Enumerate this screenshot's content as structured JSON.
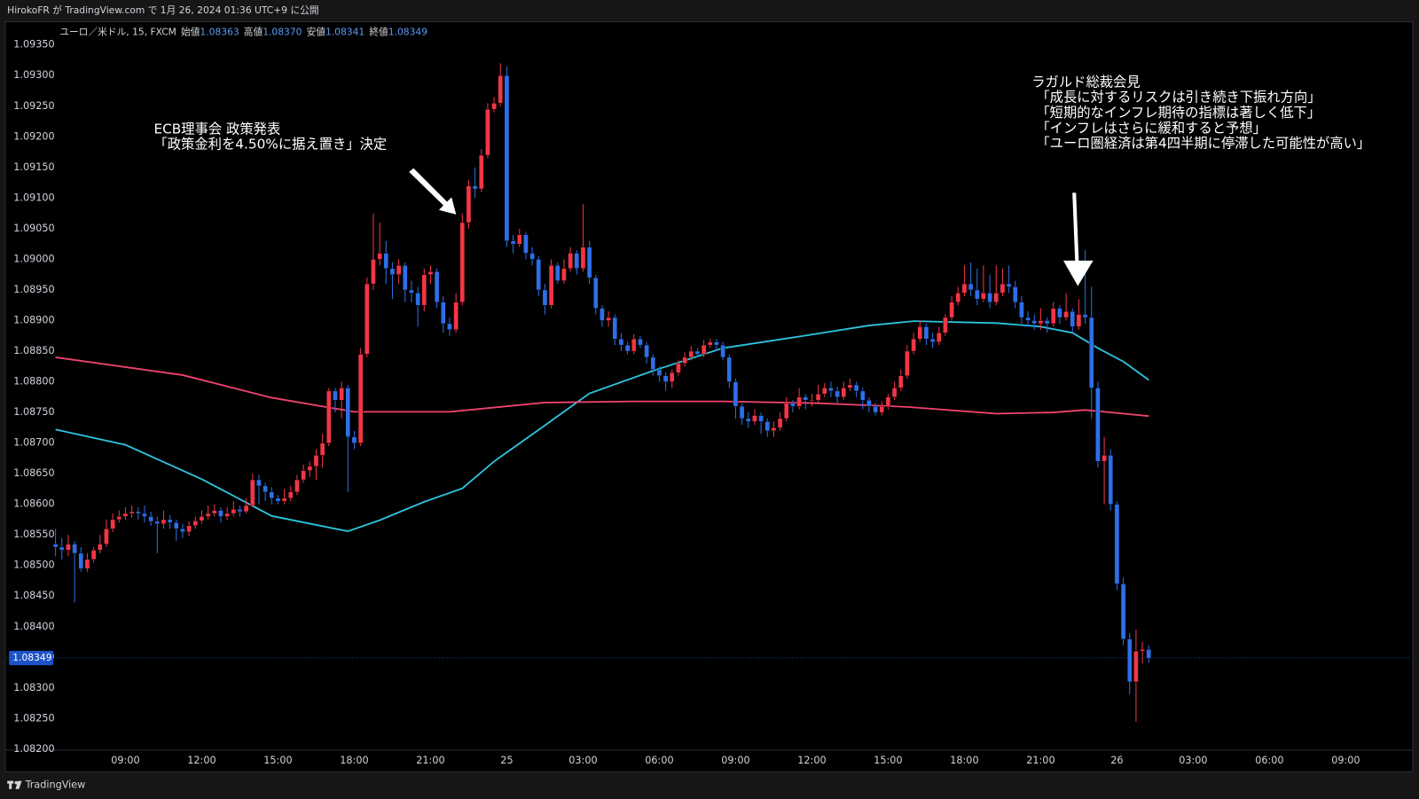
{
  "chart_data": {
    "type": "candlestick",
    "header": "HirokoFR が TradingView.com で 1月 26, 2024 01:36 UTC+9 に公開",
    "symbol": "ユーロ／米ドル, 15, FXCM",
    "ohlc_labels": [
      "始値",
      "高値",
      "安値",
      "終値"
    ],
    "last_labels": [
      "1.08363",
      "1.08370",
      "1.08341",
      "1.08349"
    ],
    "footer": "TradingView",
    "up_color": "#f23645",
    "down_color": "#2e6fe8",
    "x": [
      "06:15",
      "06:30",
      "06:45",
      "07:00",
      "07:15",
      "07:30",
      "07:45",
      "08:00",
      "08:15",
      "08:30",
      "08:45",
      "09:00",
      "09:15",
      "09:30",
      "09:45",
      "10:00",
      "10:15",
      "10:30",
      "10:45",
      "11:00",
      "11:15",
      "11:30",
      "11:45",
      "12:00",
      "12:15",
      "12:30",
      "12:45",
      "13:00",
      "13:15",
      "13:30",
      "13:45",
      "14:00",
      "14:15",
      "14:30",
      "14:45",
      "15:00",
      "15:15",
      "15:30",
      "15:45",
      "16:00",
      "16:15",
      "16:30",
      "16:45",
      "17:00",
      "17:15",
      "17:30",
      "17:45",
      "18:00",
      "18:15",
      "18:30",
      "18:45",
      "19:00",
      "19:15",
      "19:30",
      "19:45",
      "20:00",
      "20:15",
      "20:30",
      "20:45",
      "21:00",
      "21:15",
      "21:30",
      "21:45",
      "22:00",
      "22:15",
      "22:30",
      "22:45",
      "23:00",
      "23:15",
      "23:30",
      "23:45",
      "00:00",
      "00:15",
      "00:30",
      "00:45",
      "01:00",
      "01:15",
      "01:30",
      "01:45",
      "02:00",
      "02:15",
      "02:30",
      "02:45",
      "03:00",
      "03:15",
      "03:30",
      "03:45",
      "04:00",
      "04:15",
      "04:30",
      "04:45",
      "05:00",
      "05:15",
      "05:30",
      "05:45",
      "06:00",
      "06:15",
      "06:30",
      "06:45",
      "07:00",
      "07:15",
      "07:30",
      "07:45",
      "08:00",
      "08:15",
      "08:30",
      "08:45",
      "09:00",
      "09:15",
      "09:30",
      "09:45",
      "10:00",
      "10:15",
      "10:30",
      "10:45",
      "11:00",
      "11:15",
      "11:30",
      "11:45",
      "12:00",
      "12:15",
      "12:30",
      "12:45",
      "13:00",
      "13:15",
      "13:30",
      "13:45",
      "14:00",
      "14:15",
      "14:30",
      "14:45",
      "15:00",
      "15:15",
      "15:30",
      "15:45",
      "16:00",
      "16:15",
      "16:30",
      "16:45",
      "17:00",
      "17:15",
      "17:30",
      "17:45",
      "18:00",
      "18:15",
      "18:30",
      "18:45",
      "19:00",
      "19:15",
      "19:30",
      "19:45",
      "20:00",
      "20:15",
      "20:30",
      "20:45",
      "21:00",
      "21:15",
      "21:30",
      "21:45",
      "22:00",
      "22:15",
      "22:30",
      "22:45",
      "23:00",
      "23:15",
      "23:30",
      "23:45",
      "00:00",
      "00:15",
      "00:30",
      "00:45",
      "01:00",
      "01:15"
    ],
    "open": [
      1.08535,
      1.0853,
      1.08525,
      1.08535,
      1.0852,
      1.08495,
      1.0851,
      1.08525,
      1.08535,
      1.0856,
      1.08575,
      1.0858,
      1.08585,
      1.08588,
      1.08585,
      1.0858,
      1.08572,
      1.08568,
      1.08575,
      1.0857,
      1.0856,
      1.08555,
      1.08565,
      1.08573,
      1.0858,
      1.08585,
      1.0859,
      1.0858,
      1.08585,
      1.08592,
      1.08588,
      1.08598,
      1.0864,
      1.0863,
      1.0862,
      1.0861,
      1.08605,
      1.0861,
      1.0862,
      1.0864,
      1.08655,
      1.08662,
      1.0868,
      1.087,
      1.08785,
      1.0877,
      1.0879,
      1.0871,
      1.087,
      1.08845,
      1.0896,
      1.09,
      1.0901,
      1.08985,
      1.08975,
      1.0899,
      1.0895,
      1.08945,
      1.08925,
      1.08975,
      1.0898,
      1.0893,
      1.08895,
      1.08885,
      1.0893,
      1.0906,
      1.0912,
      1.09115,
      1.0917,
      1.09245,
      1.09255,
      1.093,
      1.0903,
      1.09025,
      1.0904,
      1.0901,
      1.09,
      1.0895,
      1.08925,
      1.0899,
      1.08965,
      1.08985,
      1.0901,
      1.08985,
      1.0902,
      1.0897,
      1.0892,
      1.089,
      1.08905,
      1.0887,
      1.0886,
      1.0885,
      1.0887,
      1.0886,
      1.0884,
      1.0882,
      1.0881,
      1.088,
      1.08815,
      1.0883,
      1.0884,
      1.0885,
      1.08845,
      1.0886,
      1.08865,
      1.0886,
      1.0884,
      1.088,
      1.0876,
      1.0874,
      1.08735,
      1.08745,
      1.08735,
      1.0872,
      1.08725,
      1.0874,
      1.08765,
      1.0876,
      1.08775,
      1.0877,
      1.0877,
      1.0878,
      1.0879,
      1.08785,
      1.08775,
      1.0879,
      1.08795,
      1.08785,
      1.0877,
      1.0876,
      1.0875,
      1.0876,
      1.08775,
      1.0879,
      1.0881,
      1.0885,
      1.0887,
      1.0889,
      1.0887,
      1.08865,
      1.0888,
      1.08905,
      1.0893,
      1.08945,
      1.0896,
      1.0895,
      1.08935,
      1.08945,
      1.0893,
      1.08945,
      1.0896,
      1.08955,
      1.0893,
      1.08905,
      1.089,
      1.08895,
      1.089,
      1.08895,
      1.0892,
      1.08905,
      1.08915,
      1.0889,
      1.0891,
      1.08905,
      1.0879,
      1.0867,
      1.0868,
      1.086,
      1.0847,
      1.0838,
      1.0831,
      1.0836,
      1.08363
    ],
    "high": [
      1.0856,
      1.08545,
      1.0855,
      1.0854,
      1.0853,
      1.0852,
      1.0853,
      1.0855,
      1.08575,
      1.08585,
      1.0859,
      1.08595,
      1.08598,
      1.08595,
      1.08598,
      1.08588,
      1.0858,
      1.0859,
      1.08582,
      1.08575,
      1.08568,
      1.08572,
      1.0858,
      1.0859,
      1.08598,
      1.086,
      1.08595,
      1.08595,
      1.08605,
      1.08598,
      1.0861,
      1.0865,
      1.08648,
      1.08635,
      1.08628,
      1.08615,
      1.08625,
      1.0863,
      1.08648,
      1.08665,
      1.0867,
      1.0869,
      1.08715,
      1.0879,
      1.0879,
      1.088,
      1.08795,
      1.0872,
      1.08855,
      1.0897,
      1.09075,
      1.0906,
      1.0903,
      1.08995,
      1.09,
      1.08995,
      1.08965,
      1.08955,
      1.08985,
      1.0899,
      1.08985,
      1.0894,
      1.08905,
      1.08945,
      1.09075,
      1.0913,
      1.0915,
      1.0918,
      1.09255,
      1.09265,
      1.0932,
      1.09315,
      1.0904,
      1.0905,
      1.09045,
      1.0902,
      1.09005,
      1.0896,
      1.09,
      1.08995,
      1.09,
      1.0902,
      1.09015,
      1.0909,
      1.0903,
      1.08975,
      1.08925,
      1.08915,
      1.0891,
      1.0888,
      1.08865,
      1.08878,
      1.08875,
      1.08865,
      1.08845,
      1.08825,
      1.08815,
      1.0882,
      1.08835,
      1.08848,
      1.08858,
      1.08855,
      1.08868,
      1.0887,
      1.0887,
      1.08865,
      1.08845,
      1.08805,
      1.08765,
      1.0875,
      1.08755,
      1.0875,
      1.0874,
      1.08735,
      1.0875,
      1.08775,
      1.0877,
      1.0879,
      1.0878,
      1.0878,
      1.08795,
      1.08798,
      1.088,
      1.08792,
      1.088,
      1.08805,
      1.088,
      1.0879,
      1.08775,
      1.08765,
      1.08768,
      1.0878,
      1.088,
      1.0882,
      1.0886,
      1.0888,
      1.089,
      1.08895,
      1.0888,
      1.0889,
      1.0891,
      1.0894,
      1.08955,
      1.0899,
      1.08995,
      1.08985,
      1.0899,
      1.08975,
      1.0899,
      1.08985,
      1.0899,
      1.08965,
      1.0894,
      1.08915,
      1.0891,
      1.0892,
      1.08905,
      1.0893,
      1.08925,
      1.08945,
      1.0892,
      1.08935,
      1.09015,
      1.08955,
      1.088,
      1.0871,
      1.0869,
      1.08605,
      1.0848,
      1.0839,
      1.08395,
      1.08375,
      1.0837
    ],
    "low": [
      1.08515,
      1.0851,
      1.08515,
      1.0844,
      1.0849,
      1.0849,
      1.08505,
      1.0852,
      1.0853,
      1.08555,
      1.0857,
      1.08575,
      1.08578,
      1.08575,
      1.0857,
      1.08565,
      1.0852,
      1.0856,
      1.0856,
      1.0854,
      1.08545,
      1.08548,
      1.0856,
      1.08568,
      1.08575,
      1.0858,
      1.0857,
      1.08575,
      1.0858,
      1.0858,
      1.08585,
      1.08595,
      1.086,
      1.08605,
      1.086,
      1.086,
      1.086,
      1.08605,
      1.08615,
      1.08635,
      1.08645,
      1.0864,
      1.0866,
      1.08695,
      1.0875,
      1.0874,
      1.0862,
      1.0869,
      1.08695,
      1.0884,
      1.0895,
      1.0899,
      1.0896,
      1.08935,
      1.0896,
      1.0893,
      1.0893,
      1.0889,
      1.08915,
      1.0896,
      1.0892,
      1.0888,
      1.08875,
      1.0888,
      1.08925,
      1.0905,
      1.091,
      1.0911,
      1.09165,
      1.0924,
      1.0925,
      1.0902,
      1.0901,
      1.0902,
      1.09,
      1.0899,
      1.0894,
      1.0891,
      1.0892,
      1.0896,
      1.0896,
      1.0898,
      1.08975,
      1.0898,
      1.0896,
      1.0891,
      1.0889,
      1.0889,
      1.0886,
      1.0885,
      1.08845,
      1.08845,
      1.08855,
      1.0883,
      1.0881,
      1.088,
      1.08785,
      1.0879,
      1.0881,
      1.08825,
      1.08835,
      1.0884,
      1.0884,
      1.08855,
      1.0885,
      1.08835,
      1.0879,
      1.0874,
      1.0873,
      1.08725,
      1.0873,
      1.08715,
      1.0871,
      1.0871,
      1.0872,
      1.08735,
      1.0875,
      1.08755,
      1.08755,
      1.0876,
      1.08765,
      1.08775,
      1.08775,
      1.08765,
      1.0877,
      1.08785,
      1.08775,
      1.08755,
      1.0875,
      1.08745,
      1.08745,
      1.08755,
      1.0877,
      1.08785,
      1.08805,
      1.08845,
      1.08865,
      1.0886,
      1.08855,
      1.0886,
      1.08875,
      1.089,
      1.08925,
      1.0894,
      1.0894,
      1.08925,
      1.0893,
      1.0892,
      1.08925,
      1.0894,
      1.08945,
      1.0892,
      1.08895,
      1.0889,
      1.08885,
      1.08885,
      1.0888,
      1.0889,
      1.08895,
      1.089,
      1.0888,
      1.08885,
      1.08895,
      1.0874,
      1.0866,
      1.086,
      1.0859,
      1.0846,
      1.0837,
      1.0829,
      1.08245,
      1.0834,
      1.08341
    ],
    "close": [
      1.0853,
      1.08525,
      1.08535,
      1.0852,
      1.08495,
      1.0851,
      1.08525,
      1.08535,
      1.0856,
      1.08575,
      1.0858,
      1.08585,
      1.08588,
      1.08585,
      1.0858,
      1.08572,
      1.08568,
      1.08575,
      1.0857,
      1.0856,
      1.08555,
      1.08565,
      1.08573,
      1.0858,
      1.08585,
      1.0859,
      1.0858,
      1.08585,
      1.08592,
      1.08588,
      1.08598,
      1.0864,
      1.0863,
      1.0862,
      1.0861,
      1.08605,
      1.0861,
      1.0862,
      1.0864,
      1.08655,
      1.08662,
      1.0868,
      1.087,
      1.08785,
      1.0877,
      1.0879,
      1.0871,
      1.087,
      1.08845,
      1.0896,
      1.09,
      1.0901,
      1.08985,
      1.08975,
      1.0899,
      1.0895,
      1.08945,
      1.08925,
      1.08975,
      1.0898,
      1.0893,
      1.08895,
      1.08885,
      1.0893,
      1.0906,
      1.0912,
      1.09115,
      1.0917,
      1.09245,
      1.09255,
      1.093,
      1.0903,
      1.09025,
      1.0904,
      1.0901,
      1.09,
      1.0895,
      1.08925,
      1.0899,
      1.08965,
      1.08985,
      1.0901,
      1.08985,
      1.0902,
      1.0897,
      1.0892,
      1.089,
      1.08905,
      1.0887,
      1.0886,
      1.0885,
      1.0887,
      1.0886,
      1.0884,
      1.0882,
      1.0881,
      1.088,
      1.08815,
      1.0883,
      1.0884,
      1.0885,
      1.08845,
      1.0886,
      1.08865,
      1.0886,
      1.0884,
      1.088,
      1.0876,
      1.0874,
      1.08735,
      1.08745,
      1.08735,
      1.0872,
      1.08725,
      1.0874,
      1.08765,
      1.0876,
      1.08775,
      1.0877,
      1.0877,
      1.0878,
      1.0879,
      1.08785,
      1.08775,
      1.0879,
      1.08795,
      1.08785,
      1.0877,
      1.0876,
      1.0875,
      1.0876,
      1.08775,
      1.0879,
      1.0881,
      1.0885,
      1.0887,
      1.0889,
      1.0887,
      1.08865,
      1.0888,
      1.08905,
      1.0893,
      1.08945,
      1.0896,
      1.0895,
      1.08935,
      1.08945,
      1.0893,
      1.08945,
      1.0896,
      1.08955,
      1.0893,
      1.08905,
      1.089,
      1.08895,
      1.089,
      1.08895,
      1.0892,
      1.08905,
      1.08915,
      1.0889,
      1.0891,
      1.08905,
      1.0879,
      1.0867,
      1.0868,
      1.086,
      1.0847,
      1.0838,
      1.0831,
      1.0836,
      1.08363,
      1.08349
    ],
    "lines": [
      {
        "color": "#2ec4de",
        "x": [
          0,
          11,
          23,
          34,
          46,
          51,
          58,
          64,
          69,
          77,
          84,
          94,
          105,
          117,
          128,
          135,
          148,
          155,
          160,
          164,
          168,
          172
        ],
        "values": [
          1.08722,
          1.08697,
          1.08641,
          1.08581,
          1.08556,
          1.08574,
          1.08604,
          1.08626,
          1.0867,
          1.08729,
          1.08781,
          1.08818,
          1.08855,
          1.08874,
          1.08892,
          1.08899,
          1.08896,
          1.0889,
          1.0888,
          1.08855,
          1.08833,
          1.08803
        ]
      },
      {
        "color": "#f0436e",
        "x": [
          0,
          20,
          34,
          47,
          62,
          77,
          91,
          105,
          120,
          134,
          148,
          157,
          162,
          172
        ],
        "values": [
          1.0884,
          1.08811,
          1.08774,
          1.08751,
          1.08751,
          1.08766,
          1.08768,
          1.08768,
          1.08765,
          1.08759,
          1.08748,
          1.0875,
          1.08754,
          1.08744
        ]
      }
    ],
    "xlim": [
      -7.6,
      213.1
    ],
    "xticks": [
      {
        "value": 11,
        "label": "09:00"
      },
      {
        "value": 23,
        "label": "12:00"
      },
      {
        "value": 35,
        "label": "15:00"
      },
      {
        "value": 47,
        "label": "18:00"
      },
      {
        "value": 59,
        "label": "21:00"
      },
      {
        "value": 71,
        "label": "25"
      },
      {
        "value": 83,
        "label": "03:00"
      },
      {
        "value": 95,
        "label": "06:00"
      },
      {
        "value": 107,
        "label": "09:00"
      },
      {
        "value": 119,
        "label": "12:00"
      },
      {
        "value": 131,
        "label": "15:00"
      },
      {
        "value": 143,
        "label": "18:00"
      },
      {
        "value": 155,
        "label": "21:00"
      },
      {
        "value": 167,
        "label": "26"
      },
      {
        "value": 179,
        "label": "03:00"
      },
      {
        "value": 191,
        "label": "06:00"
      },
      {
        "value": 203,
        "label": "09:00"
      }
    ],
    "ylim": [
      1.082,
      1.09388
    ],
    "yticks": [
      {
        "value": 1.082,
        "label": "1.08200"
      },
      {
        "value": 1.0825,
        "label": "1.08250"
      },
      {
        "value": 1.083,
        "label": "1.08300"
      },
      {
        "value": 1.0835,
        "label": "1.08350"
      },
      {
        "value": 1.084,
        "label": "1.08400"
      },
      {
        "value": 1.0845,
        "label": "1.08450"
      },
      {
        "value": 1.085,
        "label": "1.08500"
      },
      {
        "value": 1.0855,
        "label": "1.08550"
      },
      {
        "value": 1.086,
        "label": "1.08600"
      },
      {
        "value": 1.0865,
        "label": "1.08650"
      },
      {
        "value": 1.087,
        "label": "1.08700"
      },
      {
        "value": 1.0875,
        "label": "1.08750"
      },
      {
        "value": 1.088,
        "label": "1.08800"
      },
      {
        "value": 1.0885,
        "label": "1.08850"
      },
      {
        "value": 1.089,
        "label": "1.08900"
      },
      {
        "value": 1.0895,
        "label": "1.08950"
      },
      {
        "value": 1.09,
        "label": "1.09000"
      },
      {
        "value": 1.0905,
        "label": "1.09050"
      },
      {
        "value": 1.091,
        "label": "1.09100"
      },
      {
        "value": 1.0915,
        "label": "1.09150"
      },
      {
        "value": 1.092,
        "label": "1.09200"
      },
      {
        "value": 1.0925,
        "label": "1.09250"
      },
      {
        "value": 1.093,
        "label": "1.09300"
      },
      {
        "value": 1.0935,
        "label": "1.09350"
      }
    ],
    "grid": false,
    "annotations": [
      {
        "lines": [
          "ECB理事会 政策発表",
          "「政策金利を4.50%に据え置き」決定"
        ]
      },
      {
        "lines": [
          "ラガルド総裁会見",
          "「成長に対するリスクは引き続き下振れ方向」",
          "「短期的なインフレ期待の指標は著しく低下」",
          "「インフレはさらに緩和すると予想」",
          "「ユーロ圏経済は第4四半期に停滞した可能性が高い」"
        ]
      }
    ]
  }
}
